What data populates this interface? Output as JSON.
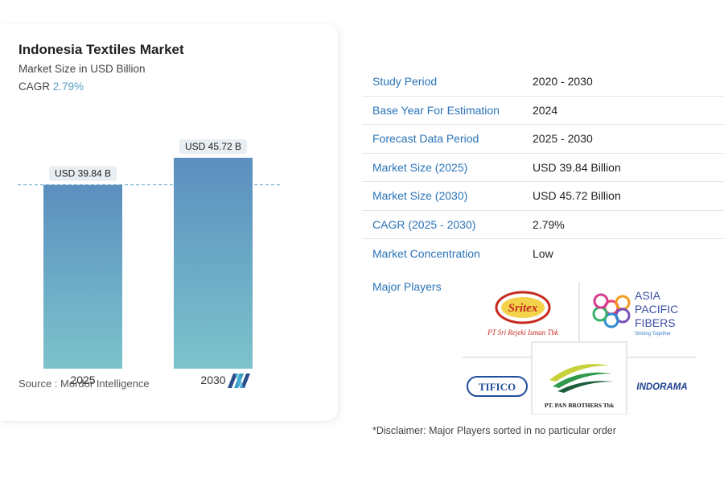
{
  "chart_header": {
    "title": "Indonesia Textiles Market",
    "subtitle": "Market Size in USD Billion",
    "cagr_label": "CAGR",
    "cagr_value": "2.79%"
  },
  "chart_data": {
    "type": "bar",
    "title": "Indonesia Textiles Market",
    "ylabel": "Market Size in USD Billion",
    "categories": [
      "2025",
      "2030"
    ],
    "values": [
      39.84,
      45.72
    ],
    "data_labels": [
      "USD 39.84 B",
      "USD 45.72 B"
    ],
    "ylim": [
      0,
      52
    ],
    "colors": {
      "bar_top": "#5b8fbf",
      "bar_bottom": "#7cc3cc",
      "reference_line": "#5aa0c4",
      "label_bg": "#e8eef1"
    },
    "reference_line_value": 39.84
  },
  "source": "Source :  Mordor Intelligence",
  "details": [
    {
      "label": "Study Period",
      "value": "2020 - 2030"
    },
    {
      "label": "Base Year For Estimation",
      "value": "2024"
    },
    {
      "label": "Forecast Data Period",
      "value": "2025 - 2030"
    },
    {
      "label": "Market Size (2025)",
      "value": "USD 39.84 Billion"
    },
    {
      "label": "Market Size (2030)",
      "value": "USD 45.72 Billion"
    },
    {
      "label": "CAGR (2025 - 2030)",
      "value": "2.79%"
    },
    {
      "label": "Market Concentration",
      "value": "Low"
    }
  ],
  "players": {
    "label": "Major Players",
    "logos": {
      "sritex_mark": "Sritex",
      "sritex_name": "PT Sri Rejeki Isman Tbk",
      "apf_line1": "ASIA",
      "apf_line2": "PACIFIC",
      "apf_line3": "FIBERS",
      "apf_tag": "Shining Together",
      "tifico": "TIFICO",
      "panbrothers": "PT. PAN BROTHERS Tbk",
      "indorama": "INDORAMA"
    }
  },
  "disclaimer": "*Disclaimer: Major Players sorted in no particular order"
}
